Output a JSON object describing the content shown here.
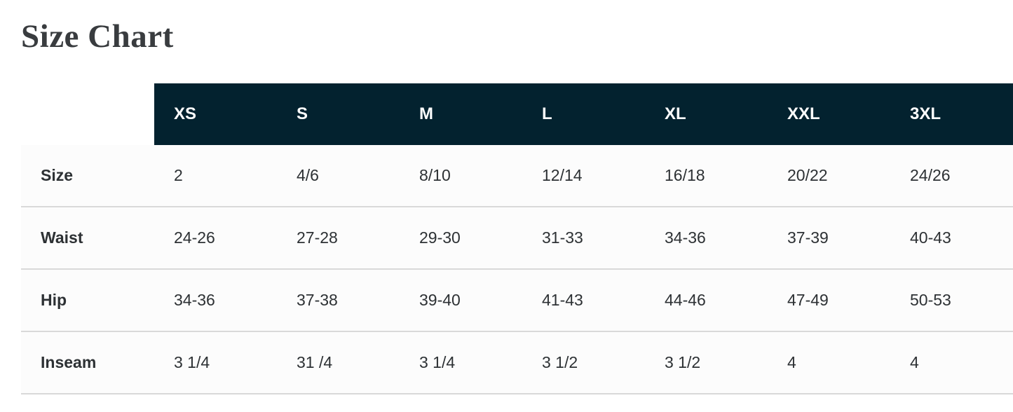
{
  "page": {
    "title": "Size Chart"
  },
  "colors": {
    "header_background": "#03222f",
    "header_text": "#ffffff",
    "body_text": "#2d3134",
    "title_text": "#393c3f",
    "divider": "#d9d9d9"
  },
  "size_chart": {
    "columns": [
      "XS",
      "S",
      "M",
      "L",
      "XL",
      "XXL",
      "3XL"
    ],
    "rows": [
      {
        "label": "Size",
        "values": [
          "2",
          "4/6",
          "8/10",
          "12/14",
          "16/18",
          "20/22",
          "24/26"
        ]
      },
      {
        "label": "Waist",
        "values": [
          "24-26",
          "27-28",
          "29-30",
          "31-33",
          "34-36",
          "37-39",
          "40-43"
        ]
      },
      {
        "label": "Hip",
        "values": [
          "34-36",
          "37-38",
          "39-40",
          "41-43",
          "44-46",
          "47-49",
          "50-53"
        ]
      },
      {
        "label": "Inseam",
        "values": [
          "3 1/4",
          "31 /4",
          "3 1/4",
          "3 1/2",
          "3 1/2",
          "4",
          "4"
        ]
      }
    ]
  }
}
